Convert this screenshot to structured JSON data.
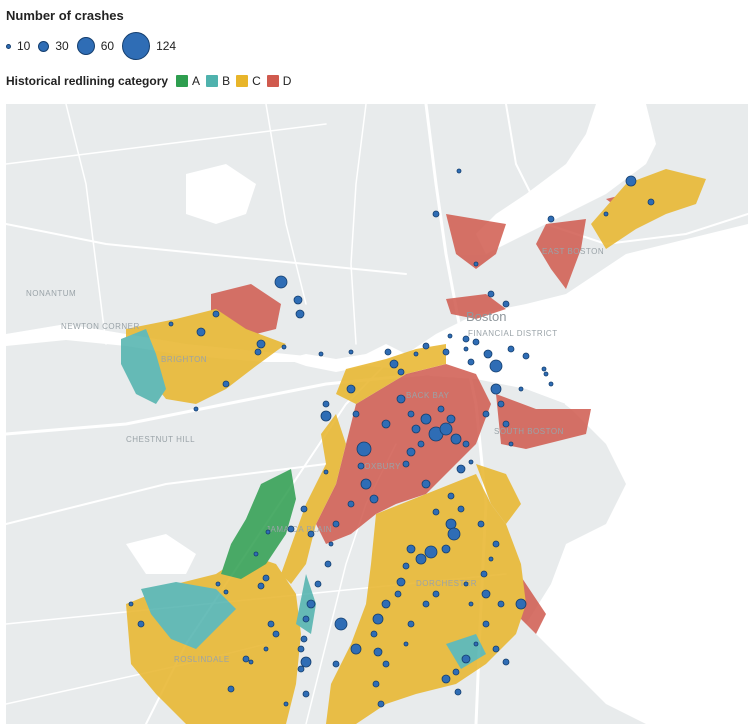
{
  "legend": {
    "size_title": "Number of crashes",
    "sizes": [
      {
        "label": "10",
        "value": 10
      },
      {
        "label": "30",
        "value": 30
      },
      {
        "label": "60",
        "value": 60
      },
      {
        "label": "124",
        "value": 124
      }
    ],
    "category_title": "Historical redlining category",
    "categories": [
      {
        "label": "A",
        "color": "#2e9e4f"
      },
      {
        "label": "B",
        "color": "#4fb2ad"
      },
      {
        "label": "C",
        "color": "#e8b52a"
      },
      {
        "label": "D",
        "color": "#d05a4e"
      }
    ]
  },
  "map": {
    "city_label": "Boston",
    "place_labels": [
      "NONANTUM",
      "NEWTON CORNER",
      "BRIGHTON",
      "CHESTNUT HILL",
      "FINANCIAL DISTRICT",
      "EAST BOSTON",
      "SOUTH BOSTON",
      "ROXBURY",
      "JAMAICA PLAIN",
      "DORCHESTER",
      "ROSLINDALE",
      "BACK BAY"
    ],
    "colors": {
      "land": "#e8ebec",
      "water": "#ffffff",
      "bubble": "#2f6db5",
      "bubble_stroke": "#143e6e"
    }
  }
}
